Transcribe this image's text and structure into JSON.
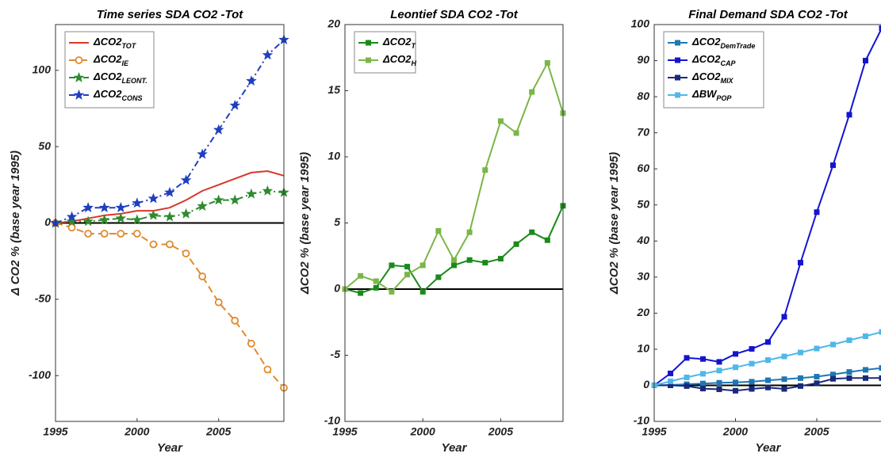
{
  "chart_data": [
    {
      "type": "line",
      "title": "Time series SDA CO2 -Tot",
      "xlabel": "Year",
      "ylabel": "Δ CO2 % (base year 1995)",
      "x": [
        1995,
        1996,
        1997,
        1998,
        1999,
        2000,
        2001,
        2002,
        2003,
        2004,
        2005,
        2006,
        2007,
        2008,
        2009
      ],
      "xlim": [
        1995,
        2009
      ],
      "ylim": [
        -130,
        130
      ],
      "xticks": [
        1995,
        2000,
        2005
      ],
      "yticks": [
        -100,
        -50,
        0,
        50,
        100
      ],
      "zero_line": 0,
      "legend": "upper left",
      "grid": false,
      "series": [
        {
          "name": "ΔCO2",
          "subscript": "TOT",
          "color": "#d9372b",
          "marker": "none",
          "linestyle": "solid",
          "values": [
            0,
            1,
            3,
            5,
            6,
            8,
            8,
            10,
            15,
            21,
            25,
            29,
            33,
            34,
            31
          ]
        },
        {
          "name": "ΔCO2",
          "subscript": "IE",
          "color": "#e08a2c",
          "marker": "circle",
          "linestyle": "dashed",
          "values": [
            0,
            -3,
            -7,
            -7,
            -7,
            -7,
            -14,
            -14,
            -20,
            -35,
            -52,
            -64,
            -79,
            -96,
            -108
          ]
        },
        {
          "name": "ΔCO2",
          "subscript": "LEONT.",
          "color": "#2e8b2e",
          "marker": "star",
          "linestyle": "dashdot",
          "values": [
            0,
            1,
            1,
            2,
            3,
            2,
            5,
            4,
            6,
            11,
            15,
            15,
            19,
            21,
            20
          ]
        },
        {
          "name": "ΔCO2",
          "subscript": "CONS",
          "color": "#1f3fbf",
          "marker": "star",
          "linestyle": "dashdot",
          "values": [
            0,
            4,
            10,
            10,
            10,
            13,
            16,
            20,
            28,
            45,
            61,
            77,
            93,
            110,
            120
          ]
        }
      ]
    },
    {
      "type": "line",
      "title": "Leontief SDA CO2 -Tot",
      "xlabel": "Year",
      "ylabel": "ΔCO2 % (base year 1995)",
      "x": [
        1995,
        1996,
        1997,
        1998,
        1999,
        2000,
        2001,
        2002,
        2003,
        2004,
        2005,
        2006,
        2007,
        2008,
        2009
      ],
      "xlim": [
        1995,
        2009
      ],
      "ylim": [
        -10,
        20
      ],
      "xticks": [
        1995,
        2000,
        2005
      ],
      "yticks": [
        -10,
        -5,
        0,
        5,
        10,
        15,
        20
      ],
      "zero_line": 0,
      "legend": "upper left",
      "grid": false,
      "series": [
        {
          "name": "ΔCO2",
          "subscript": "T",
          "color": "#1a8a1a",
          "marker": "square",
          "linestyle": "solid",
          "values": [
            0,
            -0.3,
            0.1,
            1.8,
            1.7,
            -0.2,
            0.9,
            1.8,
            2.2,
            2.0,
            2.3,
            3.4,
            4.3,
            3.7,
            6.3
          ]
        },
        {
          "name": "ΔCO2",
          "subscript": "H",
          "color": "#7ab648",
          "marker": "square",
          "linestyle": "solid",
          "values": [
            0,
            1.0,
            0.6,
            -0.2,
            1.1,
            1.8,
            4.4,
            2.2,
            4.3,
            9.0,
            12.7,
            11.8,
            14.9,
            17.1,
            13.3
          ]
        }
      ]
    },
    {
      "type": "line",
      "title": "Final Demand SDA CO2 -Tot",
      "xlabel": "Year",
      "ylabel": "ΔCO2 % (base year 1995)",
      "x": [
        1995,
        1996,
        1997,
        1998,
        1999,
        2000,
        2001,
        2002,
        2003,
        2004,
        2005,
        2006,
        2007,
        2008,
        2009
      ],
      "xlim": [
        1995,
        2009
      ],
      "ylim": [
        -10,
        100
      ],
      "xticks": [
        1995,
        2000,
        2005
      ],
      "yticks": [
        -10,
        0,
        10,
        20,
        30,
        40,
        50,
        60,
        70,
        80,
        90,
        100
      ],
      "zero_line": 0,
      "legend": "upper left",
      "grid": false,
      "series": [
        {
          "name": "ΔCO2",
          "subscript": "DemTrade",
          "color": "#1f77b4",
          "marker": "square",
          "linestyle": "solid",
          "values": [
            0,
            0.1,
            0.3,
            0.5,
            0.7,
            0.8,
            1.0,
            1.4,
            1.7,
            2.0,
            2.4,
            3.0,
            3.7,
            4.3,
            4.8
          ]
        },
        {
          "name": "ΔCO2",
          "subscript": "CAP",
          "color": "#1414d0",
          "marker": "square",
          "linestyle": "solid",
          "values": [
            0,
            3.3,
            7.6,
            7.3,
            6.5,
            8.7,
            10.1,
            12,
            19,
            34,
            48,
            61,
            75,
            90,
            99
          ]
        },
        {
          "name": "ΔCO2",
          "subscript": "MIX",
          "color": "#1a2a7a",
          "marker": "square",
          "linestyle": "solid",
          "values": [
            0,
            0,
            -0.2,
            -0.9,
            -1.1,
            -1.5,
            -1.0,
            -0.6,
            -1.0,
            -0.2,
            0.6,
            1.8,
            2.0,
            2.0,
            2.0
          ]
        },
        {
          "name": "ΔBW",
          "subscript": "POP",
          "color": "#4fb8e8",
          "marker": "square",
          "linestyle": "solid",
          "values": [
            0,
            1.1,
            2.2,
            3.2,
            4.1,
            5.0,
            6.0,
            7.0,
            8.0,
            9.1,
            10.2,
            11.3,
            12.5,
            13.6,
            14.8
          ]
        }
      ]
    }
  ]
}
